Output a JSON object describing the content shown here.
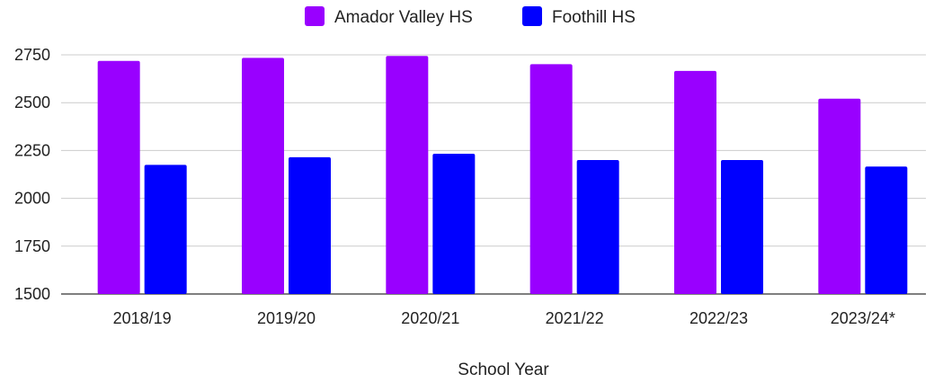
{
  "chart_data": {
    "type": "bar",
    "title": "",
    "xlabel": "School Year",
    "ylabel": "",
    "categories": [
      "2018/19",
      "2019/20",
      "2020/21",
      "2021/22",
      "2022/23",
      "2023/24*"
    ],
    "series": [
      {
        "name": "Amador Valley HS",
        "color": "#9900ff",
        "values": [
          2718,
          2734,
          2744,
          2701,
          2666,
          2521
        ]
      },
      {
        "name": "Foothill HS",
        "color": "#0000ff",
        "values": [
          2175,
          2215,
          2233,
          2200,
          2200,
          2166
        ]
      }
    ],
    "ylim": [
      1500,
      2750
    ],
    "yticks": [
      "1500",
      "1750",
      "2000",
      "2250",
      "2500",
      "2750"
    ],
    "grid": true,
    "legend_position": "top"
  }
}
